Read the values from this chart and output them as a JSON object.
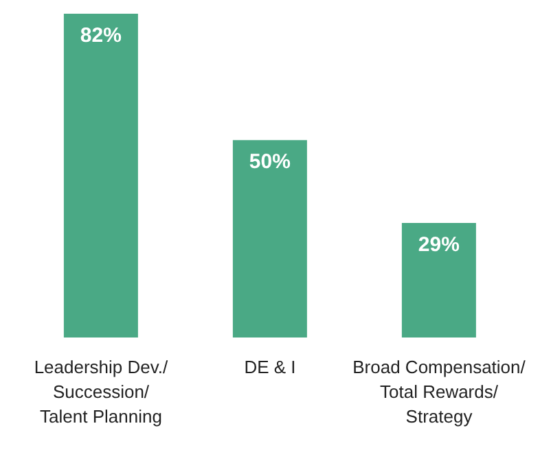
{
  "chart_data": {
    "type": "bar",
    "categories": [
      "Leadership Dev./ Succession/ Talent Planning",
      "DE & I",
      "Broad Compensation/ Total Rewards/ Strategy"
    ],
    "values": [
      82,
      50,
      29
    ],
    "value_labels": [
      "82%",
      "50%",
      "29%"
    ],
    "color": "#4aa985",
    "grid": false,
    "legend": false
  }
}
